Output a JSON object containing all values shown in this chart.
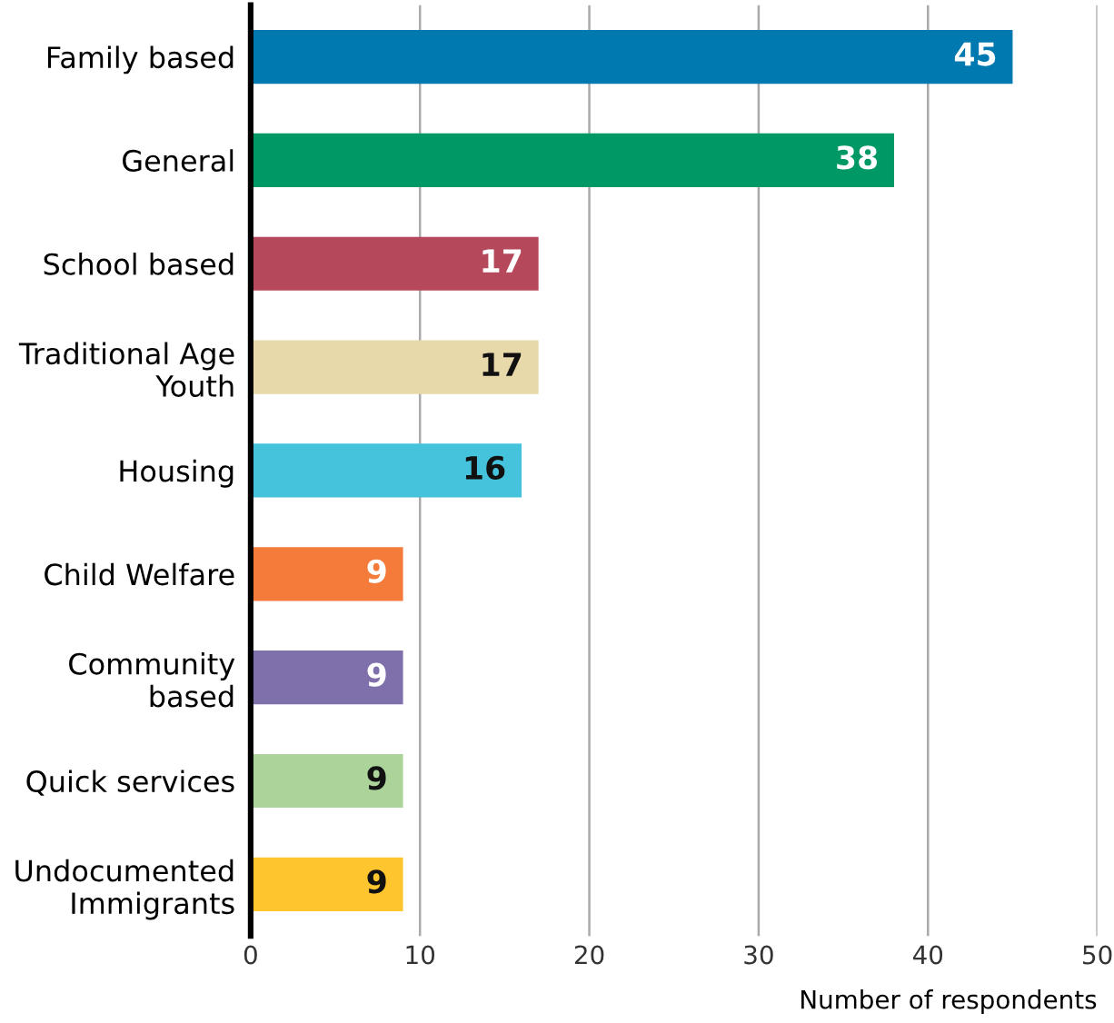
{
  "chart_data": {
    "type": "bar",
    "orientation": "horizontal",
    "categories": [
      "Family based",
      "General",
      "School based",
      "Traditional Age\nYouth",
      "Housing",
      "Child Welfare",
      "Community\nbased",
      "Quick services",
      "Undocumented\nImmigrants"
    ],
    "values": [
      45,
      38,
      17,
      17,
      16,
      9,
      9,
      9,
      9
    ],
    "colors": [
      "#0079b0",
      "#009966",
      "#b5495b",
      "#e8d9aa",
      "#45c3dc",
      "#f47b3a",
      "#7f6faa",
      "#acd49a",
      "#fec52e"
    ],
    "xlim": [
      0,
      50
    ],
    "xticks": [
      0,
      10,
      20,
      30,
      40,
      50
    ],
    "xlabel": "Number of respondents",
    "grid": "x",
    "data_labels": true
  }
}
